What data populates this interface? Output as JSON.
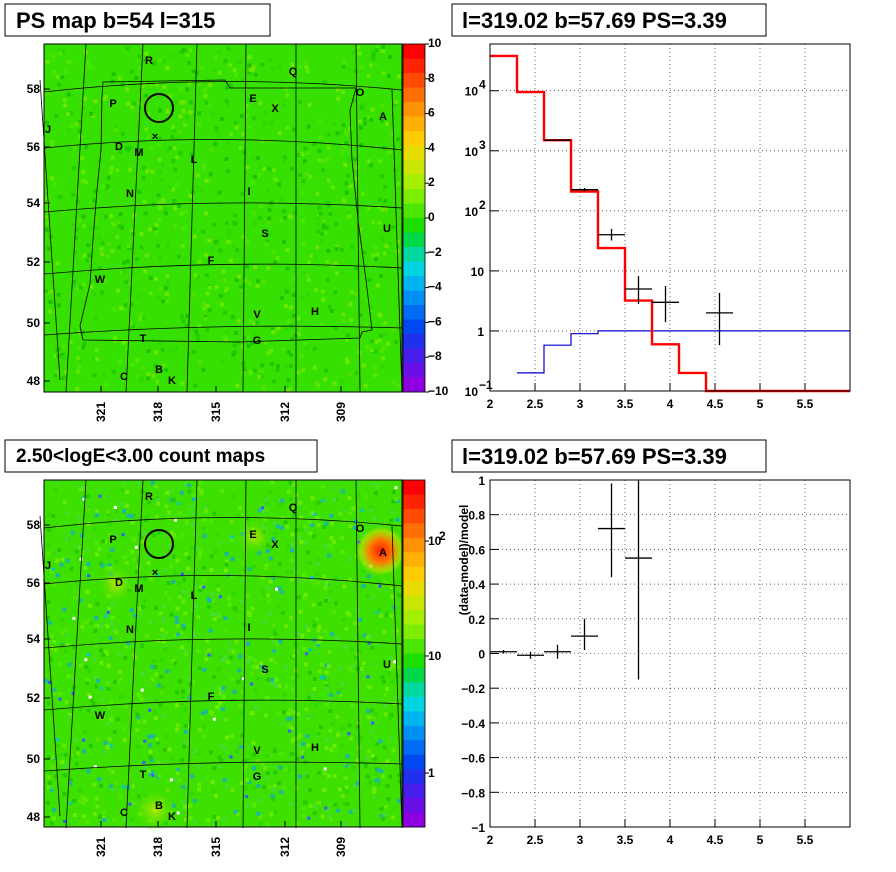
{
  "chart_data": [
    {
      "type": "heatmap",
      "title": "PS map b=54 l=315",
      "x_ticks": [
        "321",
        "318",
        "315",
        "312",
        "309"
      ],
      "y_ticks": [
        "48",
        "50",
        "52",
        "54",
        "56",
        "58"
      ],
      "colorbar_ticks": [
        "10",
        "8",
        "6",
        "4",
        "2",
        "0",
        "−2",
        "−4",
        "−6",
        "−8",
        "−10"
      ],
      "colorbar_range": [
        -10,
        10
      ],
      "source_labels": [
        "R",
        "Q",
        "P",
        "E",
        "X",
        "O",
        "A",
        "J",
        "D",
        "M",
        "L",
        "I",
        "N",
        "S",
        "U",
        "F",
        "W",
        "V",
        "H",
        "T",
        "G",
        "C",
        "B",
        "K"
      ]
    },
    {
      "type": "line",
      "title": "l=319.02 b=57.69 PS=3.39",
      "y_scale": "log",
      "xlim": [
        2,
        6
      ],
      "ylim": [
        0.1,
        60000
      ],
      "x_ticks": [
        "2",
        "2.5",
        "3",
        "3.5",
        "4",
        "4.5",
        "5",
        "5.5"
      ],
      "y_ticks": [
        {
          "base": "10",
          "exp": "4"
        },
        {
          "base": "10",
          "exp": "3"
        },
        {
          "base": "10",
          "exp": "2"
        },
        {
          "base": "10",
          "exp": ""
        },
        {
          "base": "1",
          "exp": ""
        },
        {
          "base": "10",
          "exp": "−1"
        }
      ],
      "grid": true,
      "model_histogram": {
        "color": "#ff0000",
        "edges": [
          2.0,
          2.3,
          2.6,
          2.9,
          3.2,
          3.5,
          3.8,
          4.1,
          4.4,
          6.0
        ],
        "values": [
          38000,
          9500,
          1500,
          210,
          24,
          3.2,
          0.6,
          0.2,
          0.1
        ]
      },
      "source_histogram": {
        "color": "#0000cc",
        "edges": [
          2.3,
          2.6,
          2.9,
          3.2,
          6.0
        ],
        "values": [
          0.2,
          0.58,
          0.9,
          1.0
        ]
      },
      "data_points": [
        {
          "x": 2.75,
          "y": 1500,
          "xerr": 0.15,
          "ylo": 1500,
          "yhi": 1500
        },
        {
          "x": 3.05,
          "y": 225,
          "xerr": 0.15,
          "ylo": 210,
          "yhi": 240
        },
        {
          "x": 3.35,
          "y": 40,
          "xerr": 0.15,
          "ylo": 32,
          "yhi": 50
        },
        {
          "x": 3.65,
          "y": 5,
          "xerr": 0.15,
          "ylo": 2.8,
          "yhi": 8.2
        },
        {
          "x": 3.95,
          "y": 3.0,
          "xerr": 0.15,
          "ylo": 1.4,
          "yhi": 5.6
        },
        {
          "x": 4.55,
          "y": 2.0,
          "xerr": 0.15,
          "ylo": 0.58,
          "yhi": 4.3
        }
      ]
    },
    {
      "type": "heatmap",
      "title": "2.50<logE<3.00 count maps",
      "x_ticks": [
        "321",
        "318",
        "315",
        "312",
        "309"
      ],
      "y_ticks": [
        "48",
        "50",
        "52",
        "54",
        "56",
        "58"
      ],
      "colorbar_ticks": [
        {
          "base": "10",
          "exp": "2"
        },
        {
          "base": "10",
          "exp": ""
        },
        {
          "base": "1",
          "exp": ""
        }
      ],
      "colorbar_scale": "log",
      "source_labels": [
        "R",
        "Q",
        "P",
        "E",
        "X",
        "O",
        "A",
        "J",
        "D",
        "M",
        "L",
        "I",
        "N",
        "S",
        "U",
        "F",
        "W",
        "V",
        "H",
        "T",
        "G",
        "C",
        "B",
        "K"
      ]
    },
    {
      "type": "scatter",
      "title": "l=319.02 b=57.69 PS=3.39",
      "ylabel": "(data-model)/model",
      "xlim": [
        2,
        6
      ],
      "ylim": [
        -1,
        1
      ],
      "x_ticks": [
        "2",
        "2.5",
        "3",
        "3.5",
        "4",
        "4.5",
        "5",
        "5.5"
      ],
      "y_ticks": [
        "1",
        "0.8",
        "0.6",
        "0.4",
        "0.2",
        "0",
        "−0.2",
        "−0.4",
        "−0.6",
        "−0.8",
        "−1"
      ],
      "grid": true,
      "points": [
        {
          "x": 2.15,
          "y": 0.01,
          "xerr": 0.15,
          "ylo": 0.0,
          "yhi": 0.02
        },
        {
          "x": 2.45,
          "y": -0.01,
          "xerr": 0.15,
          "ylo": -0.03,
          "yhi": 0.01
        },
        {
          "x": 2.75,
          "y": 0.01,
          "xerr": 0.15,
          "ylo": -0.03,
          "yhi": 0.05
        },
        {
          "x": 3.05,
          "y": 0.1,
          "xerr": 0.15,
          "ylo": 0.02,
          "yhi": 0.2
        },
        {
          "x": 3.35,
          "y": 0.72,
          "xerr": 0.15,
          "ylo": 0.44,
          "yhi": 0.98
        },
        {
          "x": 3.65,
          "y": 0.55,
          "xerr": 0.15,
          "ylo": -0.15,
          "yhi": 1.0
        }
      ]
    }
  ]
}
